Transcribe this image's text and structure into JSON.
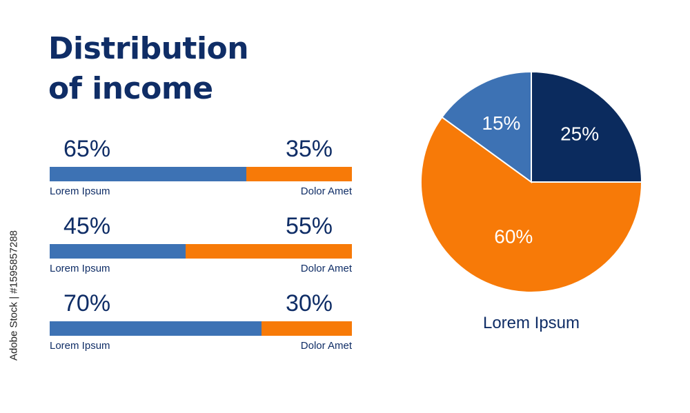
{
  "title": {
    "line1": "Distribution",
    "line2": "of income"
  },
  "watermark": "Adobe Stock | #1595857288",
  "colors": {
    "blue": "#3d72b4",
    "orange": "#f77a08",
    "navy": "#0b2b5e",
    "text": "#0f2d66"
  },
  "chart_data": [
    {
      "type": "bar",
      "stacked": true,
      "orientation": "horizontal",
      "series": [
        {
          "name": "Lorem Ipsum",
          "values": [
            65,
            45,
            70
          ],
          "value_labels": [
            "65%",
            "45%",
            "70%"
          ]
        },
        {
          "name": "Dolor Amet",
          "values": [
            35,
            55,
            30
          ],
          "value_labels": [
            "35%",
            "55%",
            "30%"
          ]
        }
      ]
    },
    {
      "type": "pie",
      "caption": "Lorem Ipsum",
      "slices": [
        {
          "label": "25%",
          "value": 25,
          "color": "#0b2b5e"
        },
        {
          "label": "60%",
          "value": 60,
          "color": "#f77a08"
        },
        {
          "label": "15%",
          "value": 15,
          "color": "#3d72b4"
        }
      ]
    }
  ]
}
